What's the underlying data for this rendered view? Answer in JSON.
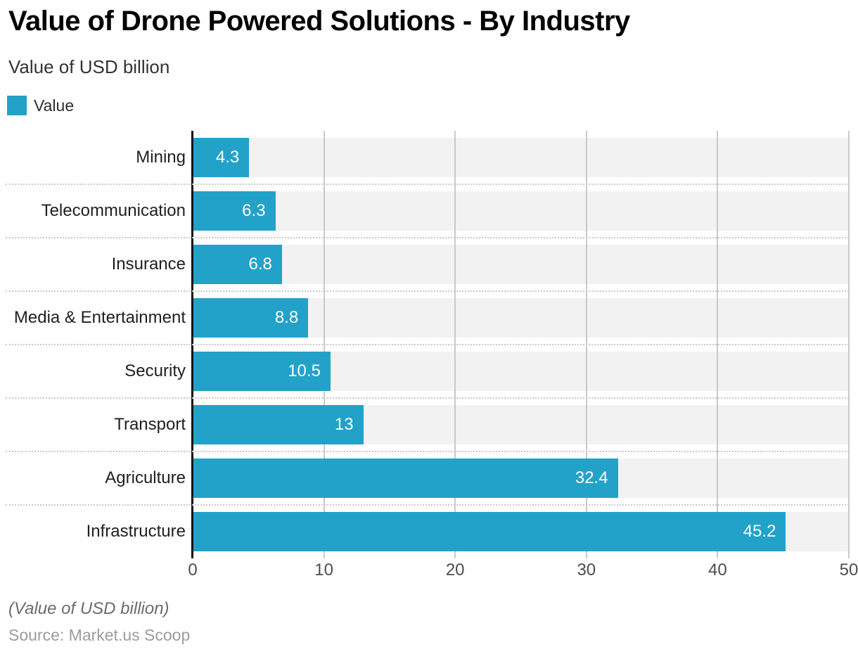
{
  "header": {
    "title": "Value of Drone Powered Solutions - By Industry",
    "subtitle": "Value of USD billion"
  },
  "legend": {
    "label": "Value",
    "color": "#22a2c9"
  },
  "chart_data": {
    "type": "bar",
    "orientation": "horizontal",
    "title": "Value of Drone Powered Solutions - By Industry",
    "subtitle": "Value of USD billion",
    "series_name": "Value",
    "categories": [
      "Mining",
      "Telecommunication",
      "Insurance",
      "Media & Entertainment",
      "Security",
      "Transport",
      "Agriculture",
      "Infrastructure"
    ],
    "values": [
      4.3,
      6.3,
      6.8,
      8.8,
      10.5,
      13,
      32.4,
      45.2
    ],
    "xlim": [
      0,
      50
    ],
    "x_ticks": [
      0,
      10,
      20,
      30,
      40,
      50
    ],
    "grid": true,
    "legend_position": "top-left",
    "bar_color": "#22a2c9",
    "band_color": "#f2f2f2",
    "gridline_color": "#c9c9c9",
    "axis_line_color": "#111111",
    "value_label_color": "#ffffff"
  },
  "footer": {
    "note": "(Value of USD billion)",
    "source": "Source: Market.us Scoop"
  }
}
